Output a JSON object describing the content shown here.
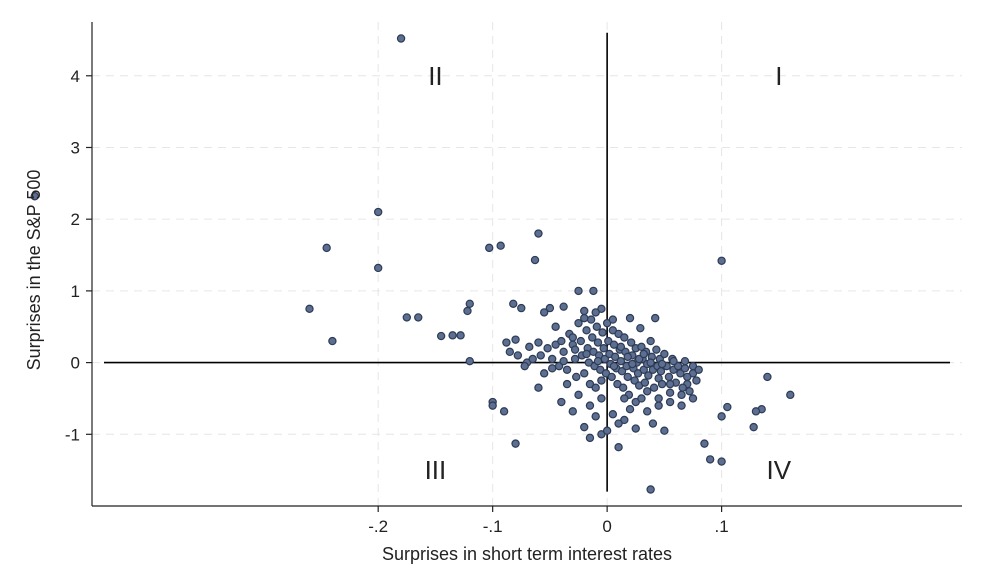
{
  "chart_data": {
    "type": "scatter",
    "title": "",
    "xlabel": "Surprises in short term interest rates",
    "ylabel": "Surprises in the S&P 500",
    "xlim": [
      -0.45,
      0.31
    ],
    "ylim": [
      -2.0,
      4.75
    ],
    "x_ticks": [
      {
        "value": -0.2,
        "label": "-.2"
      },
      {
        "value": -0.1,
        "label": "-.1"
      },
      {
        "value": 0,
        "label": "0"
      },
      {
        "value": 0.1,
        "label": ".1"
      }
    ],
    "y_ticks": [
      {
        "value": -1,
        "label": "-1"
      },
      {
        "value": 0,
        "label": "0"
      },
      {
        "value": 1,
        "label": "1"
      },
      {
        "value": 2,
        "label": "2"
      },
      {
        "value": 3,
        "label": "3"
      },
      {
        "value": 4,
        "label": "4"
      }
    ],
    "grid": true,
    "reference_lines": {
      "x": 0,
      "y": 0
    },
    "quadrant_labels": [
      {
        "label": "I",
        "x": 0.15,
        "y": 4.0
      },
      {
        "label": "II",
        "x": -0.15,
        "y": 4.0
      },
      {
        "label": "III",
        "x": -0.15,
        "y": -1.5
      },
      {
        "label": "IV",
        "x": 0.15,
        "y": -1.5
      }
    ],
    "points": [
      [
        -0.18,
        4.52
      ],
      [
        -0.5,
        2.32
      ],
      [
        -0.2,
        2.1
      ],
      [
        -0.245,
        1.6
      ],
      [
        -0.2,
        1.32
      ],
      [
        -0.26,
        0.75
      ],
      [
        -0.24,
        0.3
      ],
      [
        -0.165,
        0.63
      ],
      [
        -0.175,
        0.63
      ],
      [
        -0.12,
        0.82
      ],
      [
        -0.122,
        0.72
      ],
      [
        -0.145,
        0.37
      ],
      [
        -0.135,
        0.38
      ],
      [
        -0.128,
        0.38
      ],
      [
        -0.103,
        1.6
      ],
      [
        -0.093,
        1.63
      ],
      [
        -0.06,
        1.8
      ],
      [
        -0.063,
        1.43
      ],
      [
        -0.025,
        1.0
      ],
      [
        -0.012,
        1.0
      ],
      [
        -0.082,
        0.82
      ],
      [
        -0.075,
        0.76
      ],
      [
        -0.05,
        0.76
      ],
      [
        -0.038,
        0.78
      ],
      [
        -0.02,
        0.72
      ],
      [
        -0.055,
        0.7
      ],
      [
        -0.1,
        -0.55
      ],
      [
        -0.1,
        -0.6
      ],
      [
        -0.09,
        -0.68
      ],
      [
        -0.08,
        -1.13
      ],
      [
        -0.12,
        0.02
      ],
      [
        -0.06,
        -0.35
      ],
      [
        -0.02,
        -0.9
      ],
      [
        -0.015,
        -1.05
      ],
      [
        -0.005,
        -1.0
      ],
      [
        0.01,
        -1.18
      ],
      [
        0.038,
        -1.77
      ],
      [
        0.1,
        1.42
      ],
      [
        0.128,
        -0.9
      ],
      [
        0.14,
        -0.2
      ],
      [
        0.16,
        -0.45
      ],
      [
        0.135,
        -0.65
      ],
      [
        0.13,
        -0.68
      ],
      [
        0.105,
        -0.62
      ],
      [
        0.1,
        -0.75
      ],
      [
        0.085,
        -1.13
      ],
      [
        0.09,
        -1.35
      ],
      [
        0.1,
        -1.38
      ],
      [
        -0.03,
        -0.68
      ],
      [
        -0.04,
        -0.55
      ],
      [
        0.07,
        -0.3
      ],
      [
        0.075,
        -0.15
      ],
      [
        -0.07,
        0.0
      ],
      [
        -0.068,
        0.22
      ],
      [
        -0.058,
        0.1
      ],
      [
        -0.052,
        0.2
      ],
      [
        -0.048,
        0.05
      ],
      [
        -0.045,
        0.25
      ],
      [
        -0.042,
        -0.05
      ],
      [
        -0.04,
        0.3
      ],
      [
        -0.038,
        0.15
      ],
      [
        -0.035,
        -0.1
      ],
      [
        -0.033,
        0.4
      ],
      [
        -0.03,
        0.25
      ],
      [
        -0.028,
        0.05
      ],
      [
        -0.027,
        -0.2
      ],
      [
        -0.025,
        0.55
      ],
      [
        -0.023,
        0.3
      ],
      [
        -0.022,
        0.1
      ],
      [
        -0.02,
        -0.15
      ],
      [
        -0.018,
        0.45
      ],
      [
        -0.017,
        0.2
      ],
      [
        -0.016,
        0.0
      ],
      [
        -0.015,
        -0.3
      ],
      [
        -0.014,
        0.6
      ],
      [
        -0.013,
        0.35
      ],
      [
        -0.012,
        0.15
      ],
      [
        -0.011,
        -0.05
      ],
      [
        -0.01,
        -0.35
      ],
      [
        -0.009,
        0.5
      ],
      [
        -0.008,
        0.28
      ],
      [
        -0.007,
        0.1
      ],
      [
        -0.006,
        -0.1
      ],
      [
        -0.005,
        -0.25
      ],
      [
        -0.004,
        0.42
      ],
      [
        -0.003,
        0.2
      ],
      [
        -0.002,
        0.05
      ],
      [
        -0.001,
        -0.15
      ],
      [
        0.0,
        0.55
      ],
      [
        0.001,
        0.3
      ],
      [
        0.002,
        0.12
      ],
      [
        0.003,
        -0.02
      ],
      [
        0.004,
        -0.2
      ],
      [
        0.005,
        0.45
      ],
      [
        0.006,
        0.25
      ],
      [
        0.007,
        0.08
      ],
      [
        0.008,
        -0.08
      ],
      [
        0.009,
        -0.3
      ],
      [
        0.01,
        0.4
      ],
      [
        0.011,
        0.18
      ],
      [
        0.012,
        0.02
      ],
      [
        0.013,
        -0.12
      ],
      [
        0.014,
        -0.35
      ],
      [
        0.015,
        0.35
      ],
      [
        0.016,
        0.15
      ],
      [
        0.017,
        -0.05
      ],
      [
        0.018,
        -0.2
      ],
      [
        0.019,
        -0.45
      ],
      [
        0.02,
        0.62
      ],
      [
        0.021,
        0.28
      ],
      [
        0.022,
        0.1
      ],
      [
        0.023,
        -0.08
      ],
      [
        0.024,
        -0.25
      ],
      [
        0.025,
        0.2
      ],
      [
        0.026,
        0.0
      ],
      [
        0.027,
        -0.15
      ],
      [
        0.028,
        -0.32
      ],
      [
        0.029,
        0.48
      ],
      [
        0.03,
        0.22
      ],
      [
        0.031,
        0.05
      ],
      [
        0.032,
        -0.1
      ],
      [
        0.033,
        -0.28
      ],
      [
        0.034,
        0.15
      ],
      [
        0.035,
        -0.02
      ],
      [
        0.036,
        -0.18
      ],
      [
        0.038,
        0.3
      ],
      [
        0.039,
        0.08
      ],
      [
        0.04,
        -0.1
      ],
      [
        0.041,
        -0.35
      ],
      [
        0.042,
        0.62
      ],
      [
        0.043,
        0.18
      ],
      [
        0.044,
        -0.05
      ],
      [
        0.045,
        -0.22
      ],
      [
        0.046,
        0.05
      ],
      [
        0.047,
        -0.12
      ],
      [
        0.048,
        -0.3
      ],
      [
        0.05,
        0.12
      ],
      [
        0.052,
        -0.05
      ],
      [
        0.054,
        -0.2
      ],
      [
        0.055,
        -0.42
      ],
      [
        0.057,
        0.05
      ],
      [
        0.058,
        -0.1
      ],
      [
        0.06,
        -0.28
      ],
      [
        0.062,
        -0.05
      ],
      [
        0.064,
        -0.15
      ],
      [
        0.066,
        -0.35
      ],
      [
        0.068,
        -0.08
      ],
      [
        0.07,
        -0.2
      ],
      [
        0.072,
        -0.4
      ],
      [
        0.075,
        -0.05
      ],
      [
        0.078,
        -0.25
      ],
      [
        0.08,
        -0.1
      ],
      [
        -0.005,
        0.75
      ],
      [
        0.005,
        0.6
      ],
      [
        0.015,
        -0.5
      ],
      [
        0.025,
        -0.55
      ],
      [
        0.035,
        -0.68
      ],
      [
        0.045,
        -0.6
      ],
      [
        0.055,
        -0.55
      ],
      [
        0.065,
        -0.45
      ],
      [
        0.04,
        -0.85
      ],
      [
        0.05,
        -0.95
      ],
      [
        0.03,
        -0.5
      ],
      [
        -0.03,
        0.35
      ],
      [
        -0.045,
        0.5
      ],
      [
        -0.06,
        0.28
      ],
      [
        -0.02,
        0.62
      ],
      [
        -0.01,
        0.7
      ],
      [
        -0.065,
        0.05
      ],
      [
        -0.055,
        -0.15
      ],
      [
        -0.035,
        -0.3
      ],
      [
        -0.025,
        -0.45
      ],
      [
        -0.015,
        -0.6
      ],
      [
        -0.005,
        -0.5
      ],
      [
        0.005,
        -0.72
      ],
      [
        0.015,
        -0.8
      ],
      [
        0.025,
        -0.92
      ],
      [
        0.035,
        -0.4
      ],
      [
        0.045,
        -0.5
      ],
      [
        0.055,
        -0.3
      ],
      [
        0.065,
        -0.6
      ],
      [
        0.075,
        -0.5
      ],
      [
        -0.085,
        0.15
      ],
      [
        -0.078,
        0.1
      ],
      [
        -0.072,
        -0.05
      ],
      [
        -0.088,
        0.28
      ],
      [
        -0.08,
        0.32
      ],
      [
        0.02,
        -0.65
      ],
      [
        0.01,
        -0.85
      ],
      [
        0.0,
        -0.95
      ],
      [
        -0.01,
        -0.75
      ],
      [
        0.028,
        0.05
      ],
      [
        0.032,
        0.12
      ],
      [
        0.012,
        0.22
      ],
      [
        -0.008,
        0.02
      ],
      [
        0.006,
        -0.05
      ],
      [
        0.018,
        0.08
      ],
      [
        0.022,
        -0.02
      ],
      [
        -0.018,
        0.12
      ],
      [
        -0.028,
        0.18
      ],
      [
        -0.038,
        0.02
      ],
      [
        -0.048,
        -0.08
      ],
      [
        0.038,
        0.0
      ],
      [
        0.048,
        -0.02
      ],
      [
        0.058,
        0.02
      ],
      [
        0.068,
        0.02
      ]
    ]
  }
}
